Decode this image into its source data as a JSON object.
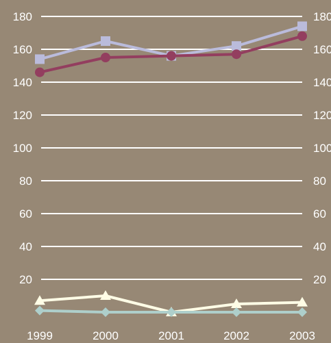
{
  "chart_data": {
    "type": "line",
    "title": "",
    "xlabel": "",
    "ylabel": "",
    "x": [
      "1999",
      "2000",
      "2001",
      "2002",
      "2003"
    ],
    "ylim": [
      0,
      180
    ],
    "yticks": [
      20,
      40,
      60,
      80,
      100,
      120,
      140,
      160,
      180
    ],
    "grid": true,
    "legend": "none",
    "background": "#978875",
    "series": [
      {
        "color": "#babbdb",
        "marker": "square",
        "values": [
          154,
          165,
          156,
          162,
          174
        ]
      },
      {
        "color": "#933e5f",
        "marker": "circle",
        "values": [
          146,
          155,
          156,
          157,
          168
        ]
      },
      {
        "color": "#fffde6",
        "marker": "triangle",
        "values": [
          7,
          10,
          0,
          5,
          6
        ]
      },
      {
        "color": "#aecfcb",
        "marker": "diamond",
        "values": [
          1,
          0,
          0,
          0,
          0
        ]
      }
    ]
  }
}
